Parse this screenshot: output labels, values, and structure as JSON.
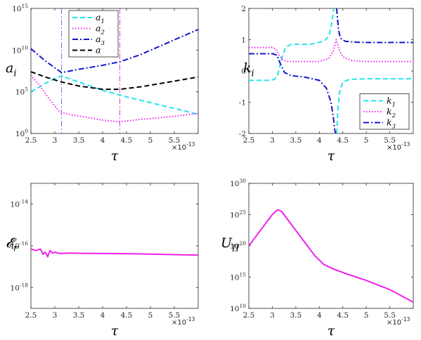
{
  "chart_data": [
    {
      "type": "line",
      "xlabel": "τ",
      "ylabel": "a_i",
      "x_multiplier": "×10^-13",
      "xlim": [
        2.5,
        6.0
      ],
      "ylim": [
        1,
        1000000000000000.0
      ],
      "yscale": "log",
      "xticks": [
        "2.5",
        "3",
        "3.5",
        "4",
        "4.5",
        "5",
        "5.5"
      ],
      "yticks": [
        {
          "base": "10",
          "exp": "0"
        },
        {
          "base": "10",
          "exp": "5"
        },
        {
          "base": "10",
          "exp": "10"
        },
        {
          "base": "10",
          "exp": "15"
        }
      ],
      "legend": "top-left",
      "vlines": [
        {
          "x": 3.14,
          "color": "#6060ff"
        },
        {
          "x": 4.36,
          "color": "#cc33cc"
        }
      ],
      "series": [
        {
          "name": "a_1",
          "color": "#22e5ee",
          "dash": "dashed",
          "x": [
            2.5,
            2.8,
            3.0,
            3.14,
            3.5,
            4.0,
            4.5,
            5.0,
            5.5,
            6.0
          ],
          "y": [
            100000.0,
            1000000.0,
            4000000.0,
            8000000.0,
            1500000.0,
            150000.0,
            25000.0,
            5000.0,
            1000.0,
            200.0
          ]
        },
        {
          "name": "a_2",
          "color": "#ee22ee",
          "dash": "dotted",
          "x": [
            2.5,
            2.7,
            2.9,
            3.1,
            3.3,
            3.6,
            4.0,
            4.36,
            4.8,
            5.4,
            6.0
          ],
          "y": [
            10000000.0,
            400000.0,
            10000.0,
            400.0,
            200.0,
            100.0,
            40.0,
            25.0,
            50.0,
            100.0,
            250.0
          ]
        },
        {
          "name": "a_3",
          "color": "#1515cc",
          "dash": "dashdot",
          "x": [
            2.5,
            2.8,
            3.14,
            3.5,
            4.0,
            4.36,
            4.8,
            5.2,
            5.6,
            6.0
          ],
          "y": [
            15000000000.0,
            500000000.0,
            20000000.0,
            50000000.0,
            150000000.0,
            400000000.0,
            3000000000.0,
            30000000000.0,
            300000000000.0,
            3000000000000.0
          ]
        },
        {
          "name": "a",
          "color": "#000000",
          "dash": "dashed",
          "x": [
            2.5,
            2.8,
            3.14,
            3.5,
            4.0,
            4.36,
            4.8,
            5.4,
            6.0
          ],
          "y": [
            25000000.0,
            6000000.0,
            1500000.0,
            500000.0,
            200000.0,
            200000.0,
            400000.0,
            1500000.0,
            6000000.0
          ]
        }
      ]
    },
    {
      "type": "line",
      "xlabel": "τ",
      "ylabel": "k_i",
      "x_multiplier": "×10^-13",
      "xlim": [
        2.5,
        6.0
      ],
      "ylim": [
        -2,
        2
      ],
      "xticks": [
        "2.5",
        "3",
        "3.5",
        "4",
        "4.5",
        "5",
        "5.5"
      ],
      "yticks": [
        "-2",
        "-1",
        "0",
        "1",
        "2"
      ],
      "legend": "bottom-right",
      "series": [
        {
          "name": "k_1",
          "color": "#22e5ee",
          "dash": "dashed",
          "segments": [
            {
              "x": [
                2.5,
                2.95,
                3.05,
                3.12,
                3.2,
                3.28,
                3.4,
                3.8,
                4.1,
                4.2,
                4.25,
                4.29,
                4.31
              ],
              "y": [
                -0.3,
                -0.3,
                -0.27,
                -0.1,
                0.4,
                0.75,
                0.85,
                0.85,
                0.95,
                1.1,
                1.4,
                1.8,
                2.0
              ]
            },
            {
              "x": [
                4.37,
                4.39,
                4.43,
                4.5,
                4.65,
                5.0,
                6.0
              ],
              "y": [
                -2.0,
                -1.4,
                -0.7,
                -0.35,
                -0.27,
                -0.25,
                -0.25
              ]
            }
          ]
        },
        {
          "name": "k_2",
          "color": "#ee22ee",
          "dash": "dotted",
          "x": [
            2.5,
            3.0,
            3.08,
            3.15,
            3.22,
            3.35,
            3.6,
            4.0,
            4.2,
            4.3,
            4.36,
            4.42,
            4.5,
            4.7,
            5.0,
            6.0
          ],
          "y": [
            0.75,
            0.75,
            0.7,
            0.5,
            0.35,
            0.3,
            0.3,
            0.3,
            0.4,
            0.65,
            1.0,
            0.7,
            0.45,
            0.33,
            0.3,
            0.3
          ]
        },
        {
          "name": "k_3",
          "color": "#1515cc",
          "dash": "dashdot",
          "segments": [
            {
              "x": [
                2.5,
                3.02,
                3.1,
                3.18,
                3.26,
                3.4,
                3.7,
                4.0,
                4.15,
                4.25,
                4.3,
                4.33,
                4.35
              ],
              "y": [
                0.55,
                0.55,
                0.5,
                0.2,
                -0.05,
                -0.15,
                -0.2,
                -0.3,
                -0.55,
                -1.0,
                -1.5,
                -1.9,
                -2.0
              ]
            },
            {
              "x": [
                4.37,
                4.38,
                4.41,
                4.45,
                4.55,
                4.75,
                5.0,
                6.0
              ],
              "y": [
                2.0,
                1.8,
                1.3,
                1.05,
                0.95,
                0.92,
                0.91,
                0.91
              ]
            }
          ]
        }
      ]
    },
    {
      "type": "line",
      "xlabel": "τ",
      "ylabel": "E_r",
      "x_multiplier": "×10^-13",
      "xlim": [
        2.5,
        6.0
      ],
      "ylim": [
        1e-19,
        1e-13
      ],
      "yscale": "log",
      "xticks": [
        "2.5",
        "3",
        "3.5",
        "4",
        "4.5",
        "5",
        "5.5"
      ],
      "yticks": [
        {
          "base": "10",
          "exp": "-18"
        },
        {
          "base": "10",
          "exp": "-16"
        },
        {
          "base": "10",
          "exp": "-14"
        }
      ],
      "series": [
        {
          "name": "",
          "color": "#ee22ee",
          "dash": "solid",
          "x": [
            2.5,
            2.6,
            2.7,
            2.75,
            2.8,
            2.85,
            2.9,
            2.95,
            3.0,
            3.1,
            3.3,
            3.6,
            4.0,
            4.5,
            5.0,
            5.5,
            6.0
          ],
          "y": [
            7e-17,
            6e-17,
            7e-17,
            4e-17,
            5e-17,
            3e-17,
            6e-17,
            4.5e-17,
            5e-17,
            4.3e-17,
            4.5e-17,
            4.4e-17,
            4.3e-17,
            4.2e-17,
            4e-17,
            3.8e-17,
            3.6e-17
          ]
        }
      ]
    },
    {
      "type": "line",
      "xlabel": "τ",
      "ylabel": "U_II",
      "x_multiplier": "×10^-13",
      "xlim": [
        2.5,
        6.0
      ],
      "ylim": [
        10000000000.0,
        1e+30
      ],
      "yscale": "log",
      "xticks": [
        "2.5",
        "3",
        "3.5",
        "4",
        "4.5",
        "5",
        "5.5"
      ],
      "yticks": [
        {
          "base": "10",
          "exp": "10"
        },
        {
          "base": "10",
          "exp": "15"
        },
        {
          "base": "10",
          "exp": "20"
        },
        {
          "base": "10",
          "exp": "25"
        },
        {
          "base": "10",
          "exp": "30"
        }
      ],
      "series": [
        {
          "name": "",
          "color": "#ee22ee",
          "dash": "solid",
          "x": [
            2.5,
            2.7,
            2.9,
            3.0,
            3.1,
            3.15,
            3.2,
            3.3,
            3.5,
            3.7,
            3.9,
            4.1,
            4.3,
            4.6,
            5.0,
            5.5,
            6.0
          ],
          "y": [
            1e+20,
            1e+22,
            1e+24,
            1e+25,
            5e+25,
            5e+25,
            3e+25,
            3e+24,
            3e+22,
            3e+20,
            3e+18,
            1e+17,
            2e+16,
            3000000000000000.0,
            300000000000000.0,
            10000000000000.0,
            100000000000.0
          ]
        }
      ]
    }
  ]
}
